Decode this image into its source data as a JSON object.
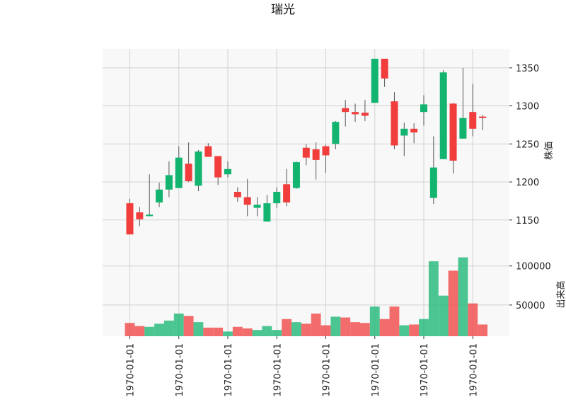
{
  "chart_data": {
    "type": "candlestick",
    "title": "瑞光",
    "up_color": "#12b46f",
    "down_color": "#f23d3d",
    "price_panel": {
      "ylabel": "株価",
      "ylim": [
        1107,
        1375
      ],
      "yticks": [
        1150,
        1200,
        1250,
        1300,
        1350
      ],
      "grid": true
    },
    "volume_panel": {
      "ylabel": "出来高",
      "ylim": [
        10000,
        117000
      ],
      "yticks": [
        50000,
        100000
      ],
      "grid": true
    },
    "x_tick_labels": [
      "1970-01-01",
      "1970-01-01",
      "1970-01-01",
      "1970-01-01",
      "1970-01-01",
      "1970-01-01",
      "1970-01-01",
      "1970-01-01"
    ],
    "x_tick_positions": [
      0,
      5,
      10,
      15,
      20,
      25,
      30,
      35
    ],
    "candles": [
      {
        "open": 1172,
        "high": 1178,
        "low": 1131,
        "close": 1131,
        "volume": 27000
      },
      {
        "open": 1160,
        "high": 1167,
        "low": 1142,
        "close": 1151,
        "volume": 23000
      },
      {
        "open": 1155,
        "high": 1210,
        "low": 1155,
        "close": 1157,
        "volume": 22000
      },
      {
        "open": 1173,
        "high": 1199,
        "low": 1167,
        "close": 1190,
        "volume": 26000
      },
      {
        "open": 1190,
        "high": 1227,
        "low": 1180,
        "close": 1209,
        "volume": 30000
      },
      {
        "open": 1192,
        "high": 1247,
        "low": 1192,
        "close": 1232,
        "volume": 39000
      },
      {
        "open": 1224,
        "high": 1252,
        "low": 1200,
        "close": 1201,
        "volume": 36000
      },
      {
        "open": 1195,
        "high": 1242,
        "low": 1188,
        "close": 1240,
        "volume": 28000
      },
      {
        "open": 1247,
        "high": 1251,
        "low": 1233,
        "close": 1233,
        "volume": 21000
      },
      {
        "open": 1234,
        "high": 1234,
        "low": 1196,
        "close": 1206,
        "volume": 21000
      },
      {
        "open": 1210,
        "high": 1227,
        "low": 1206,
        "close": 1217,
        "volume": 16000
      },
      {
        "open": 1187,
        "high": 1193,
        "low": 1174,
        "close": 1180,
        "volume": 22000
      },
      {
        "open": 1180,
        "high": 1204,
        "low": 1155,
        "close": 1170,
        "volume": 20000
      },
      {
        "open": 1166,
        "high": 1180,
        "low": 1155,
        "close": 1170,
        "volume": 18000
      },
      {
        "open": 1148,
        "high": 1183,
        "low": 1148,
        "close": 1172,
        "volume": 23000
      },
      {
        "open": 1172,
        "high": 1193,
        "low": 1166,
        "close": 1187,
        "volume": 18000
      },
      {
        "open": 1197,
        "high": 1217,
        "low": 1168,
        "close": 1173,
        "volume": 32000
      },
      {
        "open": 1192,
        "high": 1227,
        "low": 1191,
        "close": 1226,
        "volume": 28000
      },
      {
        "open": 1245,
        "high": 1250,
        "low": 1222,
        "close": 1232,
        "volume": 26000
      },
      {
        "open": 1243,
        "high": 1252,
        "low": 1203,
        "close": 1229,
        "volume": 39000
      },
      {
        "open": 1247,
        "high": 1249,
        "low": 1212,
        "close": 1235,
        "volume": 24000
      },
      {
        "open": 1250,
        "high": 1280,
        "low": 1243,
        "close": 1279,
        "volume": 35000
      },
      {
        "open": 1297,
        "high": 1308,
        "low": 1273,
        "close": 1292,
        "volume": 34000
      },
      {
        "open": 1292,
        "high": 1303,
        "low": 1279,
        "close": 1289,
        "volume": 28000
      },
      {
        "open": 1291,
        "high": 1308,
        "low": 1280,
        "close": 1287,
        "volume": 27000
      },
      {
        "open": 1304,
        "high": 1362,
        "low": 1304,
        "close": 1362,
        "volume": 48000
      },
      {
        "open": 1362,
        "high": 1362,
        "low": 1325,
        "close": 1336,
        "volume": 32000
      },
      {
        "open": 1306,
        "high": 1318,
        "low": 1243,
        "close": 1248,
        "volume": 48000
      },
      {
        "open": 1261,
        "high": 1278,
        "low": 1234,
        "close": 1270,
        "volume": 24000
      },
      {
        "open": 1270,
        "high": 1277,
        "low": 1251,
        "close": 1265,
        "volume": 25000
      },
      {
        "open": 1292,
        "high": 1314,
        "low": 1274,
        "close": 1302,
        "volume": 32000
      },
      {
        "open": 1179,
        "high": 1260,
        "low": 1171,
        "close": 1219,
        "volume": 106000
      },
      {
        "open": 1230,
        "high": 1347,
        "low": 1230,
        "close": 1344,
        "volume": 62000
      },
      {
        "open": 1303,
        "high": 1304,
        "low": 1211,
        "close": 1228,
        "volume": 94000
      },
      {
        "open": 1257,
        "high": 1350,
        "low": 1257,
        "close": 1284,
        "volume": 111000
      },
      {
        "open": 1292,
        "high": 1329,
        "low": 1260,
        "close": 1270,
        "volume": 52000
      },
      {
        "open": 1286,
        "high": 1288,
        "low": 1268,
        "close": 1284,
        "volume": 25000
      }
    ]
  }
}
